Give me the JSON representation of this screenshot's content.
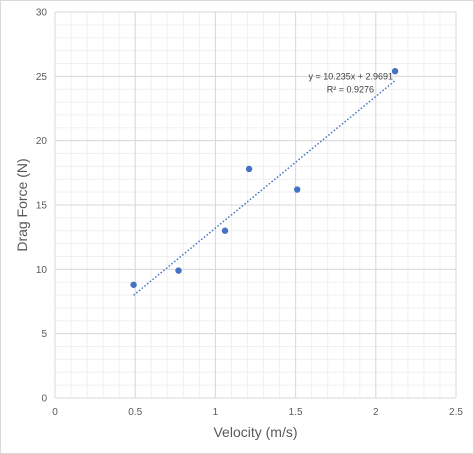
{
  "chart_data": {
    "type": "scatter",
    "xlabel": "Velocity (m/s)",
    "ylabel": "Drag Force (N)",
    "xlim": [
      0,
      2.5
    ],
    "ylim": [
      0,
      30
    ],
    "x_ticks": [
      0,
      0.5,
      1,
      1.5,
      2,
      2.5
    ],
    "x_tick_labels": [
      "0",
      "0.5",
      "1",
      "1.5",
      "2",
      "2.5"
    ],
    "y_ticks": [
      0,
      5,
      10,
      15,
      20,
      25,
      30
    ],
    "y_tick_labels": [
      "0",
      "5",
      "10",
      "15",
      "20",
      "25",
      "30"
    ],
    "grid": true,
    "minor_grid": true,
    "marker_color": "#4472c4",
    "series": [
      {
        "points": [
          {
            "x": 0.49,
            "y": 8.8
          },
          {
            "x": 0.77,
            "y": 9.9
          },
          {
            "x": 1.06,
            "y": 13.0
          },
          {
            "x": 1.21,
            "y": 17.8
          },
          {
            "x": 1.51,
            "y": 16.2
          },
          {
            "x": 2.12,
            "y": 25.4
          }
        ]
      }
    ],
    "trendline": {
      "type": "linear",
      "slope": 10.235,
      "intercept": 2.9691,
      "x_range": [
        0.49,
        2.12
      ],
      "style": "dotted",
      "color": "#4472c4",
      "equation_label": "y = 10.235x + 2.9691",
      "r2_label": "R² = 0.9276"
    }
  }
}
